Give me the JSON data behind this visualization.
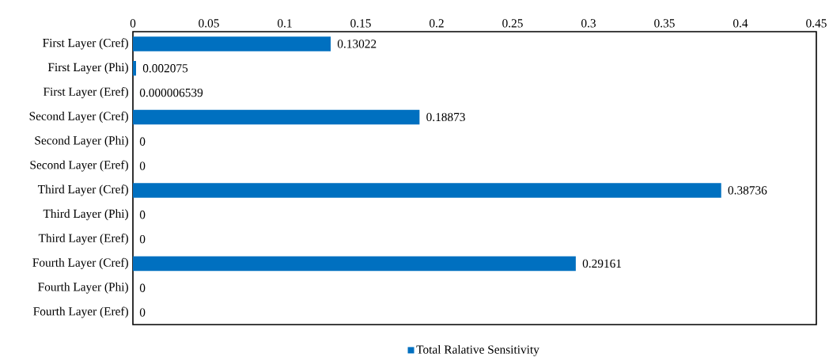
{
  "chart_data": {
    "type": "bar",
    "orientation": "horizontal",
    "categories": [
      "First Layer (Cref)",
      "First Layer (Phi)",
      "First Layer (Eref)",
      "Second Layer (Cref)",
      "Second Layer (Phi)",
      "Second Layer (Eref)",
      "Third Layer (Cref)",
      "Third Layer (Phi)",
      "Third Layer (Eref)",
      "Fourth Layer (Cref)",
      "Fourth Layer (Phi)",
      "Fourth Layer (Eref)"
    ],
    "series": [
      {
        "name": "Total Ralative Sensitivity",
        "color": "#0070c0",
        "values": [
          0.13022,
          0.002075,
          6.539e-06,
          0.18873,
          0,
          0,
          0.38736,
          0,
          0,
          0.29161,
          0,
          0
        ],
        "value_labels": [
          "0.13022",
          "0.002075",
          "0.000006539",
          "0.18873",
          "0",
          "0",
          "0.38736",
          "0",
          "0",
          "0.29161",
          "0",
          "0"
        ]
      }
    ],
    "xlim": [
      0,
      0.45
    ],
    "xticks": [
      0,
      0.05,
      0.1,
      0.15,
      0.2,
      0.25,
      0.3,
      0.35,
      0.4,
      0.45
    ],
    "grid": false,
    "legend": "bottom"
  }
}
